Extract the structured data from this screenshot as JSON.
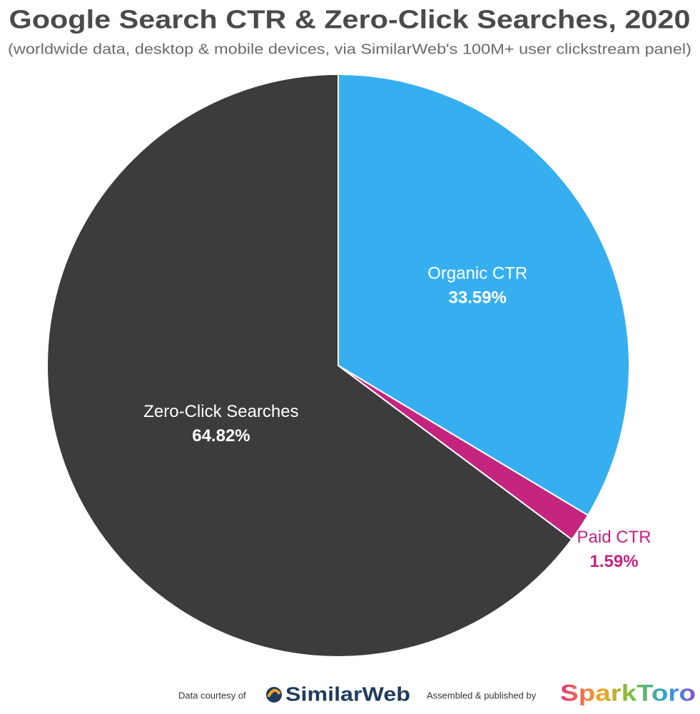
{
  "chart_data": {
    "type": "pie",
    "title": "Google Search CTR & Zero-Click Searches, 2020",
    "subtitle": "(worldwide data, desktop & mobile devices, via SimilarWeb's 100M+ user clickstream panel)",
    "categories": [
      "Organic CTR",
      "Paid CTR",
      "Zero-Click Searches"
    ],
    "values": [
      33.59,
      1.59,
      64.82
    ],
    "value_labels": [
      "33.59%",
      "1.59%",
      "64.82%"
    ],
    "colors": [
      "#35aff0",
      "#c5247f",
      "#3c3c3c"
    ],
    "credits": [
      "Data courtesy of",
      "SimilarWeb",
      "Assembled & published by",
      "SparkToro"
    ]
  }
}
